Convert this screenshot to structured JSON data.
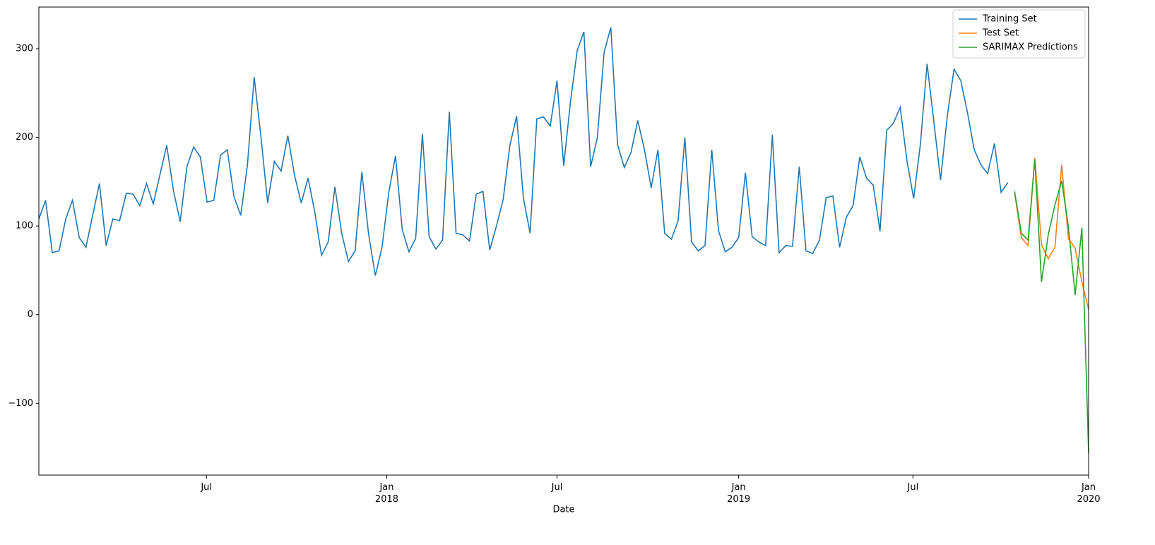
{
  "chart_data": {
    "type": "line",
    "xlabel": "Date",
    "xlim": [
      0,
      156
    ],
    "xticks": [
      {
        "value": 24.9,
        "label": "Jul"
      },
      {
        "value": 51.7,
        "label": "Jan\n2018"
      },
      {
        "value": 77.0,
        "label": "Jul"
      },
      {
        "value": 104.0,
        "label": "Jan\n2019"
      },
      {
        "value": 129.9,
        "label": "Jul"
      },
      {
        "value": 156,
        "label": "Jan\n2020"
      }
    ],
    "ylim": [
      -181,
      347
    ],
    "yticks": [
      {
        "value": -100,
        "label": "−100"
      },
      0,
      100,
      200,
      300
    ],
    "legend": "upper right",
    "series": [
      {
        "name": "Training Set",
        "color": "#1f77b4",
        "x": [
          0,
          1,
          2,
          3,
          4,
          5,
          6,
          7,
          8,
          9,
          10,
          11,
          12,
          13,
          14,
          15,
          16,
          17,
          18,
          19,
          20,
          21,
          22,
          23,
          24,
          25,
          26,
          27,
          28,
          29,
          30,
          31,
          32,
          33,
          34,
          35,
          36,
          37,
          38,
          39,
          40,
          41,
          42,
          43,
          44,
          45,
          46,
          47,
          48,
          49,
          50,
          51,
          52,
          53,
          54,
          55,
          56,
          57,
          58,
          59,
          60,
          61,
          62,
          63,
          64,
          65,
          66,
          67,
          68,
          69,
          70,
          71,
          72,
          73,
          74,
          75,
          76,
          77,
          78,
          79,
          80,
          81,
          82,
          83,
          84,
          85,
          86,
          87,
          88,
          89,
          90,
          91,
          92,
          93,
          94,
          95,
          96,
          97,
          98,
          99,
          100,
          101,
          102,
          103,
          104,
          105,
          106,
          107,
          108,
          109,
          110,
          111,
          112,
          113,
          114,
          115,
          116,
          117,
          118,
          119,
          120,
          121,
          122,
          123,
          124,
          125,
          126,
          127,
          128,
          129,
          130,
          131,
          132,
          133,
          134,
          135,
          136,
          137,
          138,
          139,
          140,
          141,
          142,
          143,
          144
        ],
        "values": [
          108,
          129,
          70,
          72,
          108,
          129,
          87,
          76,
          112,
          148,
          78,
          108,
          106,
          137,
          136,
          123,
          148,
          125,
          158,
          191,
          140,
          105,
          167,
          189,
          178,
          127,
          129,
          180,
          186,
          133,
          112,
          169,
          268,
          201,
          126,
          173,
          162,
          202,
          157,
          126,
          154,
          116,
          67,
          82,
          144,
          92,
          60,
          72,
          161,
          91,
          44,
          76,
          138,
          179,
          96,
          71,
          86,
          204,
          88,
          74,
          84,
          229,
          92,
          90,
          83,
          136,
          139,
          73,
          100,
          130,
          191,
          224,
          132,
          92,
          221,
          223,
          213,
          264,
          168,
          240,
          298,
          319,
          167,
          200,
          296,
          324,
          192,
          166,
          183,
          219,
          186,
          143,
          186,
          92,
          85,
          106,
          200,
          82,
          72,
          78,
          186,
          95,
          71,
          76,
          87,
          160,
          88,
          82,
          78,
          203,
          70,
          78,
          77,
          167,
          72,
          69,
          84,
          132,
          134,
          76,
          110,
          123,
          178,
          154,
          146,
          94,
          208,
          216,
          234,
          174,
          131,
          192,
          283,
          218,
          152,
          224,
          277,
          264,
          228,
          186,
          169,
          159,
          193,
          138,
          149
        ]
      },
      {
        "name": "Test Set",
        "color": "#ff7f0e",
        "x": [
          145,
          146,
          147,
          148,
          149,
          150,
          151,
          152,
          153,
          154,
          155,
          156
        ],
        "values": [
          138,
          87,
          78,
          177,
          79,
          63,
          76,
          169,
          86,
          75,
          37,
          6
        ]
      },
      {
        "name": "SARIMAX Predictions",
        "color": "#2ca02c",
        "x": [
          145,
          146,
          147,
          148,
          149,
          150,
          151,
          152,
          153,
          154,
          155,
          156
        ],
        "values": [
          139,
          92,
          84,
          175,
          37,
          90,
          124,
          151,
          99,
          22,
          98,
          -156
        ]
      }
    ]
  }
}
